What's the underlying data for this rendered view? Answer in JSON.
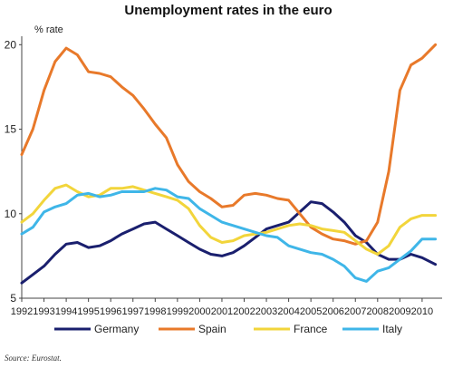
{
  "chart_data": {
    "type": "line",
    "title": "Unemployment rates in the euro",
    "ylabel": "% rate",
    "xlabel": "",
    "ylim": [
      5,
      20.5
    ],
    "xlim": [
      1992,
      2010.9
    ],
    "yticks": [
      5,
      10,
      15,
      20
    ],
    "xticks": [
      "1992",
      "1993",
      "1994",
      "1995",
      "1996",
      "1997",
      "1998",
      "1999",
      "2000",
      "2001",
      "2002",
      "2003",
      "2004",
      "2005",
      "2006",
      "2007",
      "2008",
      "2009",
      "2010"
    ],
    "grid": false,
    "legend_position": "bottom",
    "source": "Source: Eurostat.",
    "series": [
      {
        "name": "Germany",
        "color": "#1a1f6e",
        "points": [
          [
            1992,
            5.9
          ],
          [
            1992.5,
            6.4
          ],
          [
            1993,
            6.9
          ],
          [
            1993.5,
            7.6
          ],
          [
            1994,
            8.2
          ],
          [
            1994.5,
            8.3
          ],
          [
            1995,
            8.0
          ],
          [
            1995.5,
            8.1
          ],
          [
            1996,
            8.4
          ],
          [
            1996.5,
            8.8
          ],
          [
            1997,
            9.1
          ],
          [
            1997.5,
            9.4
          ],
          [
            1998,
            9.5
          ],
          [
            1998.5,
            9.1
          ],
          [
            1999,
            8.7
          ],
          [
            1999.5,
            8.3
          ],
          [
            2000,
            7.9
          ],
          [
            2000.5,
            7.6
          ],
          [
            2001,
            7.5
          ],
          [
            2001.5,
            7.7
          ],
          [
            2002,
            8.1
          ],
          [
            2002.5,
            8.6
          ],
          [
            2003,
            9.1
          ],
          [
            2003.5,
            9.3
          ],
          [
            2004,
            9.5
          ],
          [
            2004.5,
            10.1
          ],
          [
            2005,
            10.7
          ],
          [
            2005.5,
            10.6
          ],
          [
            2006,
            10.1
          ],
          [
            2006.5,
            9.5
          ],
          [
            2007,
            8.7
          ],
          [
            2007.5,
            8.3
          ],
          [
            2008,
            7.6
          ],
          [
            2008.5,
            7.3
          ],
          [
            2009,
            7.3
          ],
          [
            2009.5,
            7.6
          ],
          [
            2010,
            7.4
          ],
          [
            2010.6,
            7.0
          ]
        ]
      },
      {
        "name": "Spain",
        "color": "#e8792a",
        "points": [
          [
            1992,
            13.5
          ],
          [
            1992.5,
            15.0
          ],
          [
            1993,
            17.3
          ],
          [
            1993.5,
            19.0
          ],
          [
            1994,
            19.8
          ],
          [
            1994.5,
            19.4
          ],
          [
            1995,
            18.4
          ],
          [
            1995.5,
            18.3
          ],
          [
            1996,
            18.1
          ],
          [
            1996.5,
            17.5
          ],
          [
            1997,
            17.0
          ],
          [
            1997.5,
            16.2
          ],
          [
            1998,
            15.3
          ],
          [
            1998.5,
            14.5
          ],
          [
            1999,
            12.9
          ],
          [
            1999.5,
            11.9
          ],
          [
            2000,
            11.3
          ],
          [
            2000.5,
            10.9
          ],
          [
            2001,
            10.4
          ],
          [
            2001.5,
            10.5
          ],
          [
            2002,
            11.1
          ],
          [
            2002.5,
            11.2
          ],
          [
            2003,
            11.1
          ],
          [
            2003.5,
            10.9
          ],
          [
            2004,
            10.8
          ],
          [
            2004.5,
            10.0
          ],
          [
            2005,
            9.2
          ],
          [
            2005.5,
            8.8
          ],
          [
            2006,
            8.5
          ],
          [
            2006.5,
            8.4
          ],
          [
            2007,
            8.2
          ],
          [
            2007.5,
            8.4
          ],
          [
            2008,
            9.5
          ],
          [
            2008.5,
            12.5
          ],
          [
            2009,
            17.3
          ],
          [
            2009.5,
            18.8
          ],
          [
            2010,
            19.2
          ],
          [
            2010.6,
            20.0
          ]
        ]
      },
      {
        "name": "France",
        "color": "#f2d53b",
        "points": [
          [
            1992,
            9.5
          ],
          [
            1992.5,
            10.0
          ],
          [
            1993,
            10.8
          ],
          [
            1993.5,
            11.5
          ],
          [
            1994,
            11.7
          ],
          [
            1994.5,
            11.3
          ],
          [
            1995,
            11.0
          ],
          [
            1995.5,
            11.1
          ],
          [
            1996,
            11.5
          ],
          [
            1996.5,
            11.5
          ],
          [
            1997,
            11.6
          ],
          [
            1997.5,
            11.4
          ],
          [
            1998,
            11.2
          ],
          [
            1998.5,
            11.0
          ],
          [
            1999,
            10.8
          ],
          [
            1999.5,
            10.3
          ],
          [
            2000,
            9.3
          ],
          [
            2000.5,
            8.6
          ],
          [
            2001,
            8.3
          ],
          [
            2001.5,
            8.4
          ],
          [
            2002,
            8.7
          ],
          [
            2002.5,
            8.8
          ],
          [
            2003,
            8.9
          ],
          [
            2003.5,
            9.1
          ],
          [
            2004,
            9.3
          ],
          [
            2004.5,
            9.4
          ],
          [
            2005,
            9.3
          ],
          [
            2005.5,
            9.1
          ],
          [
            2006,
            9.0
          ],
          [
            2006.5,
            8.9
          ],
          [
            2007,
            8.4
          ],
          [
            2007.5,
            7.9
          ],
          [
            2008,
            7.6
          ],
          [
            2008.5,
            8.1
          ],
          [
            2009,
            9.2
          ],
          [
            2009.5,
            9.7
          ],
          [
            2010,
            9.9
          ],
          [
            2010.6,
            9.9
          ]
        ]
      },
      {
        "name": "Italy",
        "color": "#3fb6e8",
        "points": [
          [
            1992,
            8.8
          ],
          [
            1992.5,
            9.2
          ],
          [
            1993,
            10.1
          ],
          [
            1993.5,
            10.4
          ],
          [
            1994,
            10.6
          ],
          [
            1994.5,
            11.1
          ],
          [
            1995,
            11.2
          ],
          [
            1995.5,
            11.0
          ],
          [
            1996,
            11.1
          ],
          [
            1996.5,
            11.3
          ],
          [
            1997,
            11.3
          ],
          [
            1997.5,
            11.3
          ],
          [
            1998,
            11.5
          ],
          [
            1998.5,
            11.4
          ],
          [
            1999,
            11.0
          ],
          [
            1999.5,
            10.9
          ],
          [
            2000,
            10.3
          ],
          [
            2000.5,
            9.9
          ],
          [
            2001,
            9.5
          ],
          [
            2001.5,
            9.3
          ],
          [
            2002,
            9.1
          ],
          [
            2002.5,
            8.9
          ],
          [
            2003,
            8.7
          ],
          [
            2003.5,
            8.6
          ],
          [
            2004,
            8.1
          ],
          [
            2004.5,
            7.9
          ],
          [
            2005,
            7.7
          ],
          [
            2005.5,
            7.6
          ],
          [
            2006,
            7.3
          ],
          [
            2006.5,
            6.9
          ],
          [
            2007,
            6.2
          ],
          [
            2007.5,
            6.0
          ],
          [
            2008,
            6.6
          ],
          [
            2008.5,
            6.8
          ],
          [
            2009,
            7.3
          ],
          [
            2009.5,
            7.8
          ],
          [
            2010,
            8.5
          ],
          [
            2010.6,
            8.5
          ]
        ]
      }
    ]
  }
}
